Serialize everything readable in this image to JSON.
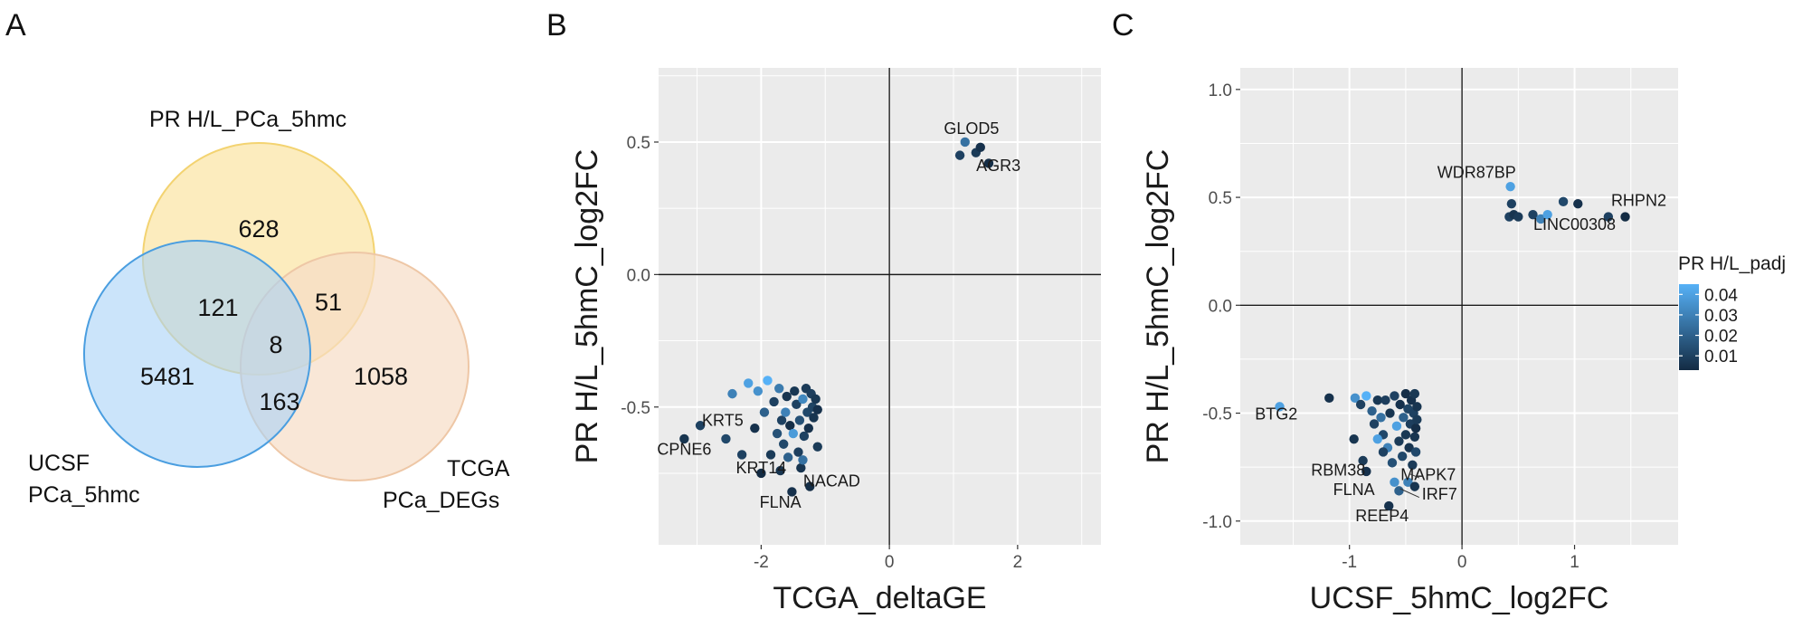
{
  "colors": {
    "panel_bg": "#ebebeb",
    "grid": "#ffffff",
    "zero_line": "#1a1a1a",
    "color_low": "#132b43",
    "color_high": "#56b1f7",
    "venn_pr": "#fbe6a8",
    "venn_pr_edge": "#f3d371",
    "venn_ucsf": "#a8d2f7",
    "venn_ucsf_edge": "#4a9ee0",
    "venn_tcga": "#f7ddc6",
    "venn_tcga_edge": "#eec7a6"
  },
  "figure": {
    "panel_labels": [
      "A",
      "B",
      "C"
    ]
  },
  "venn": {
    "sets": [
      {
        "key": "pr",
        "label": "PR H/L_PCa_5hmc"
      },
      {
        "key": "ucsf",
        "label_lines": [
          "UCSF",
          "PCa_5hmc"
        ]
      },
      {
        "key": "tcga",
        "label_lines": [
          "TCGA",
          "PCa_DEGs"
        ]
      }
    ],
    "regions": {
      "pr_only": "628",
      "pr_ucsf": "121",
      "pr_tcga": "51",
      "all": "8",
      "ucsf_only": "5481",
      "ucsf_tcga": "163",
      "tcga_only": "1058"
    }
  },
  "chart_data": [
    {
      "type": "scatter",
      "panel": "B",
      "xlabel": "TCGA_deltaGE",
      "ylabel": "PR H/L_5hmC_log2FC",
      "xlim": [
        -3.6,
        3.3
      ],
      "ylim": [
        -1.02,
        0.78
      ],
      "xticks": [
        -2,
        0,
        2
      ],
      "xtick_labels": [
        "-2",
        "0",
        "2"
      ],
      "yticks": [
        -0.5,
        0.0,
        0.5
      ],
      "ytick_labels": [
        "-0.5",
        "0.0",
        "0.5"
      ],
      "points": [
        {
          "x": 1.1,
          "y": 0.45,
          "padj": 0.01
        },
        {
          "x": 1.18,
          "y": 0.5,
          "padj": 0.025
        },
        {
          "x": 1.35,
          "y": 0.46,
          "padj": 0.008
        },
        {
          "x": 1.42,
          "y": 0.48,
          "padj": 0.005
        },
        {
          "x": 1.55,
          "y": 0.42,
          "padj": 0.004
        },
        {
          "x": -3.2,
          "y": -0.62,
          "padj": 0.006
        },
        {
          "x": -2.95,
          "y": -0.57,
          "padj": 0.01
        },
        {
          "x": -2.55,
          "y": -0.62,
          "padj": 0.012
        },
        {
          "x": -2.45,
          "y": -0.45,
          "padj": 0.03
        },
        {
          "x": -2.2,
          "y": -0.41,
          "padj": 0.04
        },
        {
          "x": -2.05,
          "y": -0.44,
          "padj": 0.035
        },
        {
          "x": -2.3,
          "y": -0.68,
          "padj": 0.01
        },
        {
          "x": -2.1,
          "y": -0.58,
          "padj": 0.005
        },
        {
          "x": -2.0,
          "y": -0.75,
          "padj": 0.003
        },
        {
          "x": -1.95,
          "y": -0.52,
          "padj": 0.02
        },
        {
          "x": -1.9,
          "y": -0.4,
          "padj": 0.045
        },
        {
          "x": -1.85,
          "y": -0.68,
          "padj": 0.008
        },
        {
          "x": -1.8,
          "y": -0.48,
          "padj": 0.01
        },
        {
          "x": -1.75,
          "y": -0.6,
          "padj": 0.015
        },
        {
          "x": -1.72,
          "y": -0.43,
          "padj": 0.028
        },
        {
          "x": -1.7,
          "y": -0.74,
          "padj": 0.006
        },
        {
          "x": -1.68,
          "y": -0.55,
          "padj": 0.01
        },
        {
          "x": -1.65,
          "y": -0.64,
          "padj": 0.012
        },
        {
          "x": -1.62,
          "y": -0.52,
          "padj": 0.03
        },
        {
          "x": -1.6,
          "y": -0.46,
          "padj": 0.006
        },
        {
          "x": -1.58,
          "y": -0.69,
          "padj": 0.02
        },
        {
          "x": -1.55,
          "y": -0.57,
          "padj": 0.004
        },
        {
          "x": -1.52,
          "y": -0.82,
          "padj": 0.005
        },
        {
          "x": -1.5,
          "y": -0.6,
          "padj": 0.038
        },
        {
          "x": -1.48,
          "y": -0.44,
          "padj": 0.007
        },
        {
          "x": -1.45,
          "y": -0.49,
          "padj": 0.01
        },
        {
          "x": -1.42,
          "y": -0.67,
          "padj": 0.009
        },
        {
          "x": -1.4,
          "y": -0.55,
          "padj": 0.015
        },
        {
          "x": -1.38,
          "y": -0.73,
          "padj": 0.006
        },
        {
          "x": -1.35,
          "y": -0.47,
          "padj": 0.032
        },
        {
          "x": -1.33,
          "y": -0.61,
          "padj": 0.01
        },
        {
          "x": -1.3,
          "y": -0.43,
          "padj": 0.008
        },
        {
          "x": -1.28,
          "y": -0.52,
          "padj": 0.012
        },
        {
          "x": -1.26,
          "y": -0.58,
          "padj": 0.005
        },
        {
          "x": -1.24,
          "y": -0.8,
          "padj": 0.004
        },
        {
          "x": -1.22,
          "y": -0.45,
          "padj": 0.009
        },
        {
          "x": -1.2,
          "y": -0.5,
          "padj": 0.011
        },
        {
          "x": -1.18,
          "y": -0.54,
          "padj": 0.006
        },
        {
          "x": -1.15,
          "y": -0.47,
          "padj": 0.007
        },
        {
          "x": -1.12,
          "y": -0.51,
          "padj": 0.005
        },
        {
          "x": -1.12,
          "y": -0.65,
          "padj": 0.008
        },
        {
          "x": -1.35,
          "y": -0.7,
          "padj": 0.025
        }
      ],
      "annotations": [
        {
          "text": "GLOD5",
          "x": 1.28,
          "y": 0.53
        },
        {
          "text": "AGR3",
          "x": 1.7,
          "y": 0.39
        },
        {
          "text": "KRT5",
          "x": -2.6,
          "y": -0.57
        },
        {
          "text": "CPNE6",
          "x": -3.2,
          "y": -0.68
        },
        {
          "text": "KRT14",
          "x": -2.0,
          "y": -0.75
        },
        {
          "text": "NACAD",
          "x": -0.9,
          "y": -0.8
        },
        {
          "text": "FLNA",
          "x": -1.7,
          "y": -0.88
        }
      ]
    },
    {
      "type": "scatter",
      "panel": "C",
      "xlabel": "UCSF_5hmC_log2FC",
      "ylabel": "PR H/L_5hmC_log2FC",
      "xlim": [
        -1.97,
        1.92
      ],
      "ylim": [
        -1.11,
        1.1
      ],
      "xticks": [
        -1,
        0,
        1
      ],
      "xtick_labels": [
        "-1",
        "0",
        "1"
      ],
      "yticks": [
        -1.0,
        -0.5,
        0.0,
        0.5,
        1.0
      ],
      "ytick_labels": [
        "-1.0",
        "-0.5",
        "0.0",
        "0.5",
        "1.0"
      ],
      "points": [
        {
          "x": 0.43,
          "y": 0.55,
          "padj": 0.04
        },
        {
          "x": 0.42,
          "y": 0.41,
          "padj": 0.01
        },
        {
          "x": 0.46,
          "y": 0.42,
          "padj": 0.006
        },
        {
          "x": 0.5,
          "y": 0.41,
          "padj": 0.008
        },
        {
          "x": 0.44,
          "y": 0.47,
          "padj": 0.01
        },
        {
          "x": 0.63,
          "y": 0.42,
          "padj": 0.01
        },
        {
          "x": 0.7,
          "y": 0.4,
          "padj": 0.03
        },
        {
          "x": 0.76,
          "y": 0.42,
          "padj": 0.04
        },
        {
          "x": 0.9,
          "y": 0.48,
          "padj": 0.012
        },
        {
          "x": 1.03,
          "y": 0.47,
          "padj": 0.005
        },
        {
          "x": 1.3,
          "y": 0.41,
          "padj": 0.01
        },
        {
          "x": 1.45,
          "y": 0.41,
          "padj": 0.003
        },
        {
          "x": -1.62,
          "y": -0.47,
          "padj": 0.04
        },
        {
          "x": -1.18,
          "y": -0.43,
          "padj": 0.005
        },
        {
          "x": -0.95,
          "y": -0.43,
          "padj": 0.035
        },
        {
          "x": -0.9,
          "y": -0.46,
          "padj": 0.01
        },
        {
          "x": -0.85,
          "y": -0.42,
          "padj": 0.045
        },
        {
          "x": -0.8,
          "y": -0.49,
          "padj": 0.02
        },
        {
          "x": -0.78,
          "y": -0.55,
          "padj": 0.01
        },
        {
          "x": -0.96,
          "y": -0.62,
          "padj": 0.006
        },
        {
          "x": -0.88,
          "y": -0.72,
          "padj": 0.008
        },
        {
          "x": -0.85,
          "y": -0.77,
          "padj": 0.005
        },
        {
          "x": -0.75,
          "y": -0.44,
          "padj": 0.007
        },
        {
          "x": -0.72,
          "y": -0.52,
          "padj": 0.025
        },
        {
          "x": -0.7,
          "y": -0.6,
          "padj": 0.012
        },
        {
          "x": -0.68,
          "y": -0.44,
          "padj": 0.009
        },
        {
          "x": -0.66,
          "y": -0.66,
          "padj": 0.03
        },
        {
          "x": -0.64,
          "y": -0.5,
          "padj": 0.006
        },
        {
          "x": -0.62,
          "y": -0.73,
          "padj": 0.015
        },
        {
          "x": -0.6,
          "y": -0.42,
          "padj": 0.01
        },
        {
          "x": -0.58,
          "y": -0.56,
          "padj": 0.04
        },
        {
          "x": -0.56,
          "y": -0.63,
          "padj": 0.008
        },
        {
          "x": -0.55,
          "y": -0.46,
          "padj": 0.005
        },
        {
          "x": -0.53,
          "y": -0.7,
          "padj": 0.012
        },
        {
          "x": -0.52,
          "y": -0.52,
          "padj": 0.02
        },
        {
          "x": -0.5,
          "y": -0.6,
          "padj": 0.007
        },
        {
          "x": -0.5,
          "y": -0.41,
          "padj": 0.004
        },
        {
          "x": -0.48,
          "y": -0.48,
          "padj": 0.011
        },
        {
          "x": -0.47,
          "y": -0.66,
          "padj": 0.006
        },
        {
          "x": -0.46,
          "y": -0.55,
          "padj": 0.009
        },
        {
          "x": -0.45,
          "y": -0.44,
          "padj": 0.005
        },
        {
          "x": -0.44,
          "y": -0.74,
          "padj": 0.008
        },
        {
          "x": -0.43,
          "y": -0.5,
          "padj": 0.01
        },
        {
          "x": -0.42,
          "y": -0.61,
          "padj": 0.006
        },
        {
          "x": -0.42,
          "y": -0.41,
          "padj": 0.007
        },
        {
          "x": -0.41,
          "y": -0.57,
          "padj": 0.004
        },
        {
          "x": -0.41,
          "y": -0.68,
          "padj": 0.012
        },
        {
          "x": -0.4,
          "y": -0.47,
          "padj": 0.006
        },
        {
          "x": -0.4,
          "y": -0.53,
          "padj": 0.008
        },
        {
          "x": -0.6,
          "y": -0.82,
          "padj": 0.035
        },
        {
          "x": -0.48,
          "y": -0.82,
          "padj": 0.03
        },
        {
          "x": -0.42,
          "y": -0.84,
          "padj": 0.006
        },
        {
          "x": -0.56,
          "y": -0.86,
          "padj": 0.02
        },
        {
          "x": -0.65,
          "y": -0.93,
          "padj": 0.005
        },
        {
          "x": -0.75,
          "y": -0.62,
          "padj": 0.04
        },
        {
          "x": -0.7,
          "y": -0.68,
          "padj": 0.01
        }
      ],
      "annotations": [
        {
          "text": "WDR87BP",
          "x": 0.13,
          "y": 0.59
        },
        {
          "text": "RHPN2",
          "x": 1.57,
          "y": 0.46
        },
        {
          "text": "LINC00308",
          "x": 1.0,
          "y": 0.35
        },
        {
          "text": "BTG2",
          "x": -1.65,
          "y": -0.53
        },
        {
          "text": "RBM38",
          "x": -1.1,
          "y": -0.79
        },
        {
          "text": "MAPK7",
          "x": -0.3,
          "y": -0.81
        },
        {
          "text": "FLNA",
          "x": -0.96,
          "y": -0.88
        },
        {
          "text": "IRF7",
          "x": -0.2,
          "y": -0.9
        },
        {
          "text": "REEP4",
          "x": -0.71,
          "y": -1.0
        }
      ],
      "legend": {
        "title": "PR H/L_padj",
        "ticks": [
          0.04,
          0.03,
          0.02,
          0.01
        ],
        "tick_labels": [
          "0.04",
          "0.03",
          "0.02",
          "0.01"
        ],
        "range": [
          0.003,
          0.045
        ],
        "position": "right"
      }
    }
  ]
}
